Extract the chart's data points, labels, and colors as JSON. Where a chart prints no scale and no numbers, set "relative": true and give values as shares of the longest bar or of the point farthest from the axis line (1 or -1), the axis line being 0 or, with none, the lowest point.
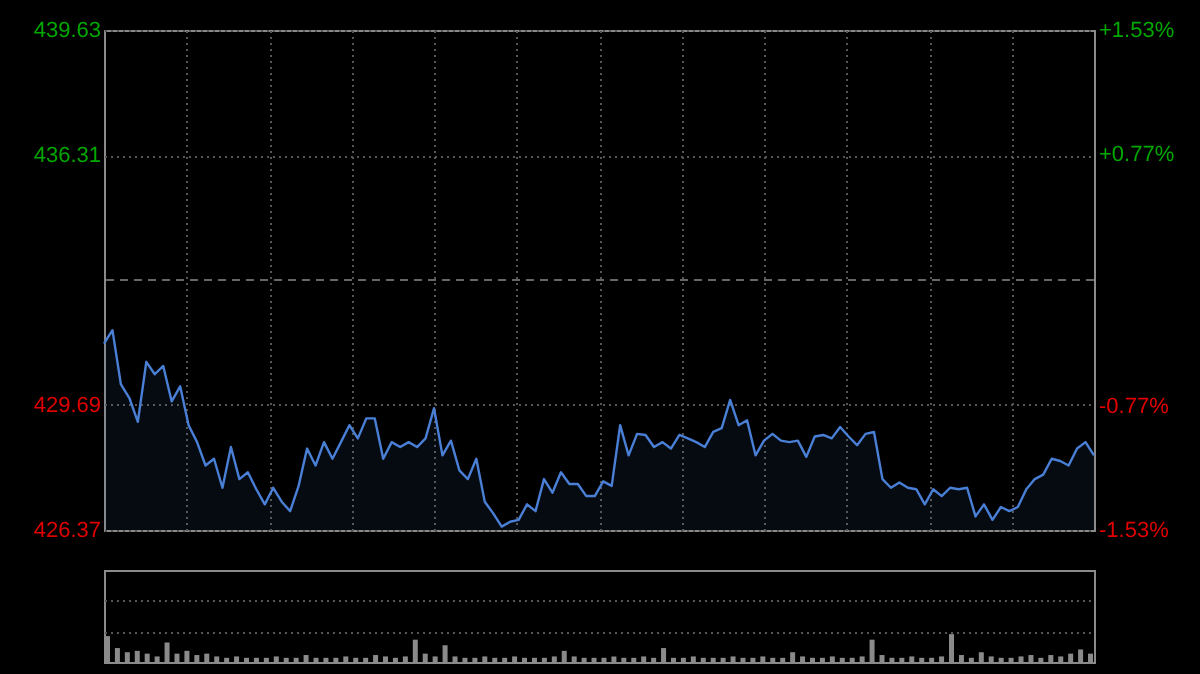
{
  "chart_data": [
    {
      "type": "area",
      "categories": [
        null,
        null,
        null,
        null,
        null,
        null,
        null,
        null,
        null,
        null,
        null,
        null,
        null,
        null,
        null,
        null,
        null,
        null,
        null,
        null,
        null,
        null,
        null,
        null,
        null,
        null,
        null,
        null,
        null,
        null,
        null,
        null,
        null,
        null,
        null,
        null,
        null,
        null,
        null,
        null,
        null,
        null,
        null,
        null,
        null,
        null,
        null,
        null,
        null,
        null,
        null,
        null,
        null,
        null,
        null,
        null,
        null,
        null,
        null,
        null,
        null,
        null,
        null,
        null,
        null,
        null,
        null,
        null,
        null,
        null,
        null,
        null,
        null,
        null,
        null,
        null,
        null,
        null,
        null,
        null,
        null,
        null,
        null,
        null,
        null,
        null,
        null,
        null,
        null,
        null,
        null,
        null,
        null,
        null,
        null,
        null,
        null,
        null,
        null,
        null,
        null,
        null,
        null,
        null,
        null,
        null,
        null,
        null,
        null,
        null,
        null,
        null,
        null,
        null,
        null,
        null,
        null,
        null
      ],
      "series": [
        {
          "color": "#4a7fd6",
          "values": [
            431.31,
            431.67,
            430.23,
            429.87,
            429.24,
            430.83,
            430.5,
            430.72,
            429.78,
            430.18,
            429.15,
            428.7,
            428.08,
            428.26,
            427.49,
            428.57,
            427.72,
            427.9,
            427.45,
            427.05,
            427.49,
            427.12,
            426.87,
            427.54,
            428.53,
            428.08,
            428.7,
            428.26,
            428.7,
            429.15,
            428.8,
            429.33,
            429.33,
            428.26,
            428.7,
            428.57,
            428.7,
            428.57,
            428.8,
            429.6,
            428.35,
            428.74,
            427.95,
            427.72,
            428.26,
            427.12,
            426.81,
            426.46,
            426.59,
            426.64,
            427.05,
            426.87,
            427.72,
            427.36,
            427.9,
            427.59,
            427.59,
            427.27,
            427.27,
            427.66,
            427.54,
            429.15,
            428.35,
            428.92,
            428.89,
            428.57,
            428.7,
            428.53,
            428.89,
            428.8,
            428.7,
            428.57,
            428.97,
            429.07,
            429.82,
            429.15,
            429.28,
            428.35,
            428.74,
            428.92,
            428.74,
            428.7,
            428.74,
            428.31,
            428.85,
            428.89,
            428.8,
            429.1,
            428.85,
            428.62,
            428.92,
            428.97,
            427.72,
            427.49,
            427.63,
            427.49,
            427.45,
            427.05,
            427.45,
            427.27,
            427.49,
            427.45,
            427.49,
            426.73,
            427.05,
            426.64,
            426.98,
            426.87,
            426.98,
            427.45,
            427.72,
            427.84,
            428.26,
            428.2,
            428.08,
            428.53,
            428.7,
            428.35
          ]
        }
      ],
      "ylim": [
        426.37,
        439.63
      ],
      "yticks": [
        426.37,
        429.69,
        436.31,
        439.63
      ],
      "y2lim": [
        -1.53,
        1.53
      ],
      "y2ticks": [
        {
          "value": -1.53,
          "label": "-1.53%"
        },
        {
          "value": -0.77,
          "label": "-0.77%"
        },
        {
          "value": 0.77,
          "label": "+0.77%"
        },
        {
          "value": 1.53,
          "label": "+1.53%"
        }
      ],
      "ref_lines": [
        {
          "axis": "y2",
          "value": 0,
          "color": "#666666",
          "line_style": "dashed"
        }
      ],
      "tick_labels": "y",
      "grid": true
    },
    {
      "type": "bar",
      "relative": true,
      "grid": true,
      "tick_labels": false,
      "categories": [
        null,
        null,
        null,
        null,
        null,
        null,
        null,
        null,
        null,
        null,
        null,
        null,
        null,
        null,
        null,
        null,
        null,
        null,
        null,
        null,
        null,
        null,
        null,
        null,
        null,
        null,
        null,
        null,
        null,
        null,
        null,
        null,
        null,
        null,
        null,
        null,
        null,
        null,
        null,
        null,
        null,
        null,
        null,
        null,
        null,
        null,
        null,
        null,
        null,
        null,
        null,
        null,
        null,
        null,
        null,
        null,
        null,
        null,
        null,
        null,
        null,
        null,
        null,
        null,
        null,
        null,
        null,
        null,
        null,
        null,
        null,
        null,
        null,
        null,
        null,
        null,
        null,
        null,
        null,
        null,
        null,
        null,
        null,
        null,
        null,
        null,
        null,
        null,
        null,
        null,
        null,
        null,
        null,
        null,
        null,
        null,
        null,
        null,
        null,
        null
      ],
      "series": [
        {
          "color": "#8a8a8a",
          "values": [
            0.93,
            0.5,
            0.35,
            0.4,
            0.3,
            0.2,
            0.7,
            0.3,
            0.4,
            0.25,
            0.3,
            0.2,
            0.15,
            0.2,
            0.15,
            0.15,
            0.15,
            0.2,
            0.15,
            0.15,
            0.25,
            0.15,
            0.15,
            0.15,
            0.2,
            0.15,
            0.15,
            0.25,
            0.2,
            0.15,
            0.2,
            0.8,
            0.3,
            0.2,
            0.6,
            0.2,
            0.15,
            0.15,
            0.2,
            0.15,
            0.15,
            0.2,
            0.15,
            0.15,
            0.15,
            0.2,
            0.4,
            0.2,
            0.15,
            0.15,
            0.15,
            0.2,
            0.15,
            0.15,
            0.2,
            0.15,
            0.5,
            0.15,
            0.15,
            0.2,
            0.15,
            0.15,
            0.15,
            0.2,
            0.15,
            0.15,
            0.2,
            0.15,
            0.15,
            0.35,
            0.2,
            0.15,
            0.15,
            0.2,
            0.15,
            0.15,
            0.2,
            0.8,
            0.25,
            0.15,
            0.15,
            0.2,
            0.15,
            0.15,
            0.2,
            1.0,
            0.25,
            0.15,
            0.35,
            0.2,
            0.15,
            0.15,
            0.2,
            0.25,
            0.15,
            0.25,
            0.2,
            0.3,
            0.45,
            0.3
          ]
        }
      ]
    }
  ]
}
